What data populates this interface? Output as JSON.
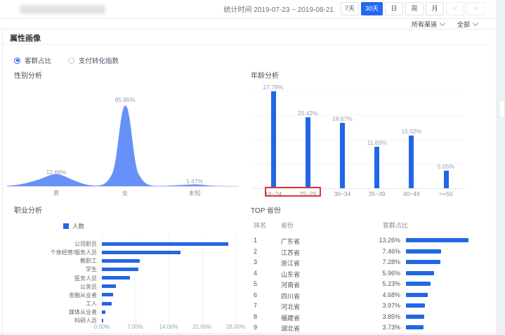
{
  "toolbar": {
    "stats_label": "统计时间 2019-07-23 ~ 2019-08-21",
    "range_7d": "7天",
    "range_30d": "30天",
    "unit_day": "日",
    "unit_week": "周",
    "unit_month": "月",
    "prev": "<",
    "next": ">",
    "active_range": "30天"
  },
  "filters": {
    "channel_dropdown": "所有渠道",
    "scope_dropdown": "全部"
  },
  "section_title": "属性画像",
  "metric_tabs": {
    "selected": "客群占比",
    "options": [
      "客群占比",
      "支付转化指数"
    ]
  },
  "colors": {
    "accent_blue": "#2468f2",
    "bar_blue": "#2166e5",
    "area_blue": "#6691f8",
    "highlight_red": "#e03434"
  },
  "chart_data": [
    {
      "id": "gender",
      "type": "area",
      "title": "性别分析",
      "categories": [
        "男",
        "女",
        "未知"
      ],
      "values": [
        12.68,
        85.85,
        1.47
      ],
      "unit": "%"
    },
    {
      "id": "age",
      "type": "bar",
      "title": "年龄分析",
      "categories": [
        "18~24",
        "25~29",
        "30~34",
        "35~39",
        "40~49",
        ">=50"
      ],
      "values": [
        27.78,
        20.42,
        18.67,
        11.83,
        15.02,
        5.05
      ],
      "unit": "%",
      "ylim": [
        0,
        28
      ],
      "grid_step": 7,
      "highlighted_categories": [
        "18~24",
        "25~29"
      ]
    },
    {
      "id": "occupation",
      "type": "bar-horizontal",
      "title": "职业分析",
      "legend": [
        "人数"
      ],
      "categories": [
        "公司职员",
        "个体经营/服务人员",
        "教职工",
        "学生",
        "医务人员",
        "公务员",
        "金融从业者",
        "工人",
        "媒体从业者",
        "科研人员"
      ],
      "values": [
        26.5,
        16.4,
        7.9,
        7.6,
        5.9,
        2.9,
        2.3,
        2.0,
        0.7,
        0.3
      ],
      "unit": "%",
      "x_ticks": [
        "0.00%",
        "7.00%",
        "14.00%",
        "21.00%",
        "28.00%"
      ],
      "xlim": [
        0,
        28
      ]
    },
    {
      "id": "provinces",
      "type": "table",
      "title": "TOP 省份",
      "columns": [
        "排名",
        "省份",
        "客群占比"
      ],
      "rows": [
        {
          "rank": "1",
          "province": "广东省",
          "value": "13.26%",
          "pct": 13.26
        },
        {
          "rank": "2",
          "province": "江苏省",
          "value": "7.46%",
          "pct": 7.46
        },
        {
          "rank": "3",
          "province": "浙江省",
          "value": "7.28%",
          "pct": 7.28
        },
        {
          "rank": "4",
          "province": "山东省",
          "value": "5.96%",
          "pct": 5.96
        },
        {
          "rank": "5",
          "province": "河南省",
          "value": "5.23%",
          "pct": 5.23
        },
        {
          "rank": "6",
          "province": "四川省",
          "value": "4.68%",
          "pct": 4.68
        },
        {
          "rank": "7",
          "province": "河北省",
          "value": "3.97%",
          "pct": 3.97
        },
        {
          "rank": "8",
          "province": "福建省",
          "value": "3.85%",
          "pct": 3.85
        },
        {
          "rank": "9",
          "province": "湖北省",
          "value": "3.73%",
          "pct": 3.73
        }
      ]
    }
  ]
}
